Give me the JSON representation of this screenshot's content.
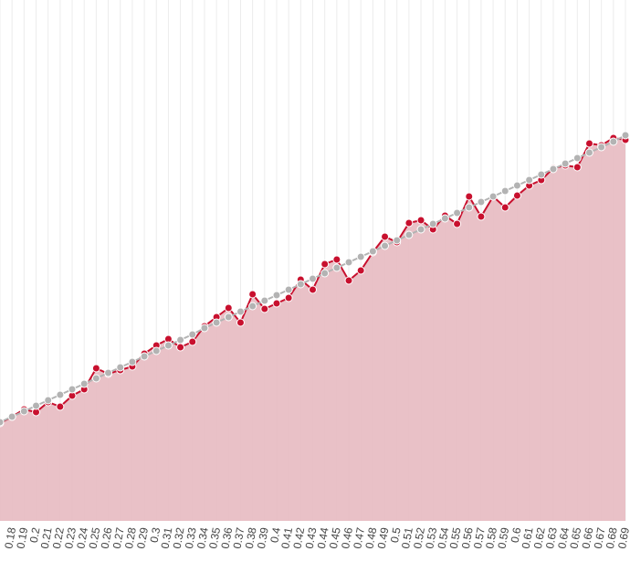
{
  "chart_data": {
    "type": "line",
    "categories": [
      null,
      "0.18",
      "0.19",
      "0.2",
      "0.21",
      "0.22",
      "0.23",
      "0.24",
      "0.25",
      "0.26",
      "0.27",
      "0.28",
      "0.29",
      "0.3",
      "0.31",
      "0.32",
      "0.33",
      "0.34",
      "0.35",
      "0.36",
      "0.37",
      "0.38",
      "0.39",
      "0.4",
      "0.41",
      "0.42",
      "0.43",
      "0.44",
      "0.45",
      "0.46",
      "0.47",
      "0.48",
      "0.49",
      "0.5",
      "0.51",
      "0.52",
      "0.53",
      "0.54",
      "0.55",
      "0.56",
      "0.57",
      "0.58",
      "0.59",
      "0.6",
      "0.61",
      "0.62",
      "0.63",
      "0.64",
      "0.65",
      "0.66",
      "0.67",
      "0.68",
      "0.69"
    ],
    "series": [
      {
        "color": "#b3b3b3",
        "values": [
          108,
          114,
          120,
          126,
          132,
          138,
          144,
          150,
          156,
          162,
          168,
          174,
          180,
          186,
          192,
          198,
          204,
          211,
          217,
          223,
          229,
          235,
          241,
          247,
          253,
          259,
          265,
          271,
          277,
          283,
          289,
          295,
          301,
          307,
          313,
          319,
          325,
          331,
          337,
          343,
          349,
          355,
          361,
          367,
          373,
          379,
          385,
          391,
          397,
          403,
          409,
          415,
          422
        ]
      },
      {
        "color": "#c8102e",
        "fill": "#e8bec4",
        "values": [
          107,
          114,
          122,
          119,
          130,
          125,
          137,
          144,
          167,
          161,
          165,
          169,
          183,
          192,
          199,
          190,
          196,
          213,
          223,
          233,
          217,
          248,
          232,
          238,
          244,
          264,
          253,
          281,
          286,
          263,
          274,
          294,
          311,
          305,
          326,
          329,
          319,
          334,
          325,
          355,
          333,
          355,
          343,
          356,
          367,
          373,
          386,
          389,
          387,
          413,
          411,
          419,
          417
        ]
      }
    ],
    "ylim": [
      0,
      570
    ],
    "grid": true
  }
}
